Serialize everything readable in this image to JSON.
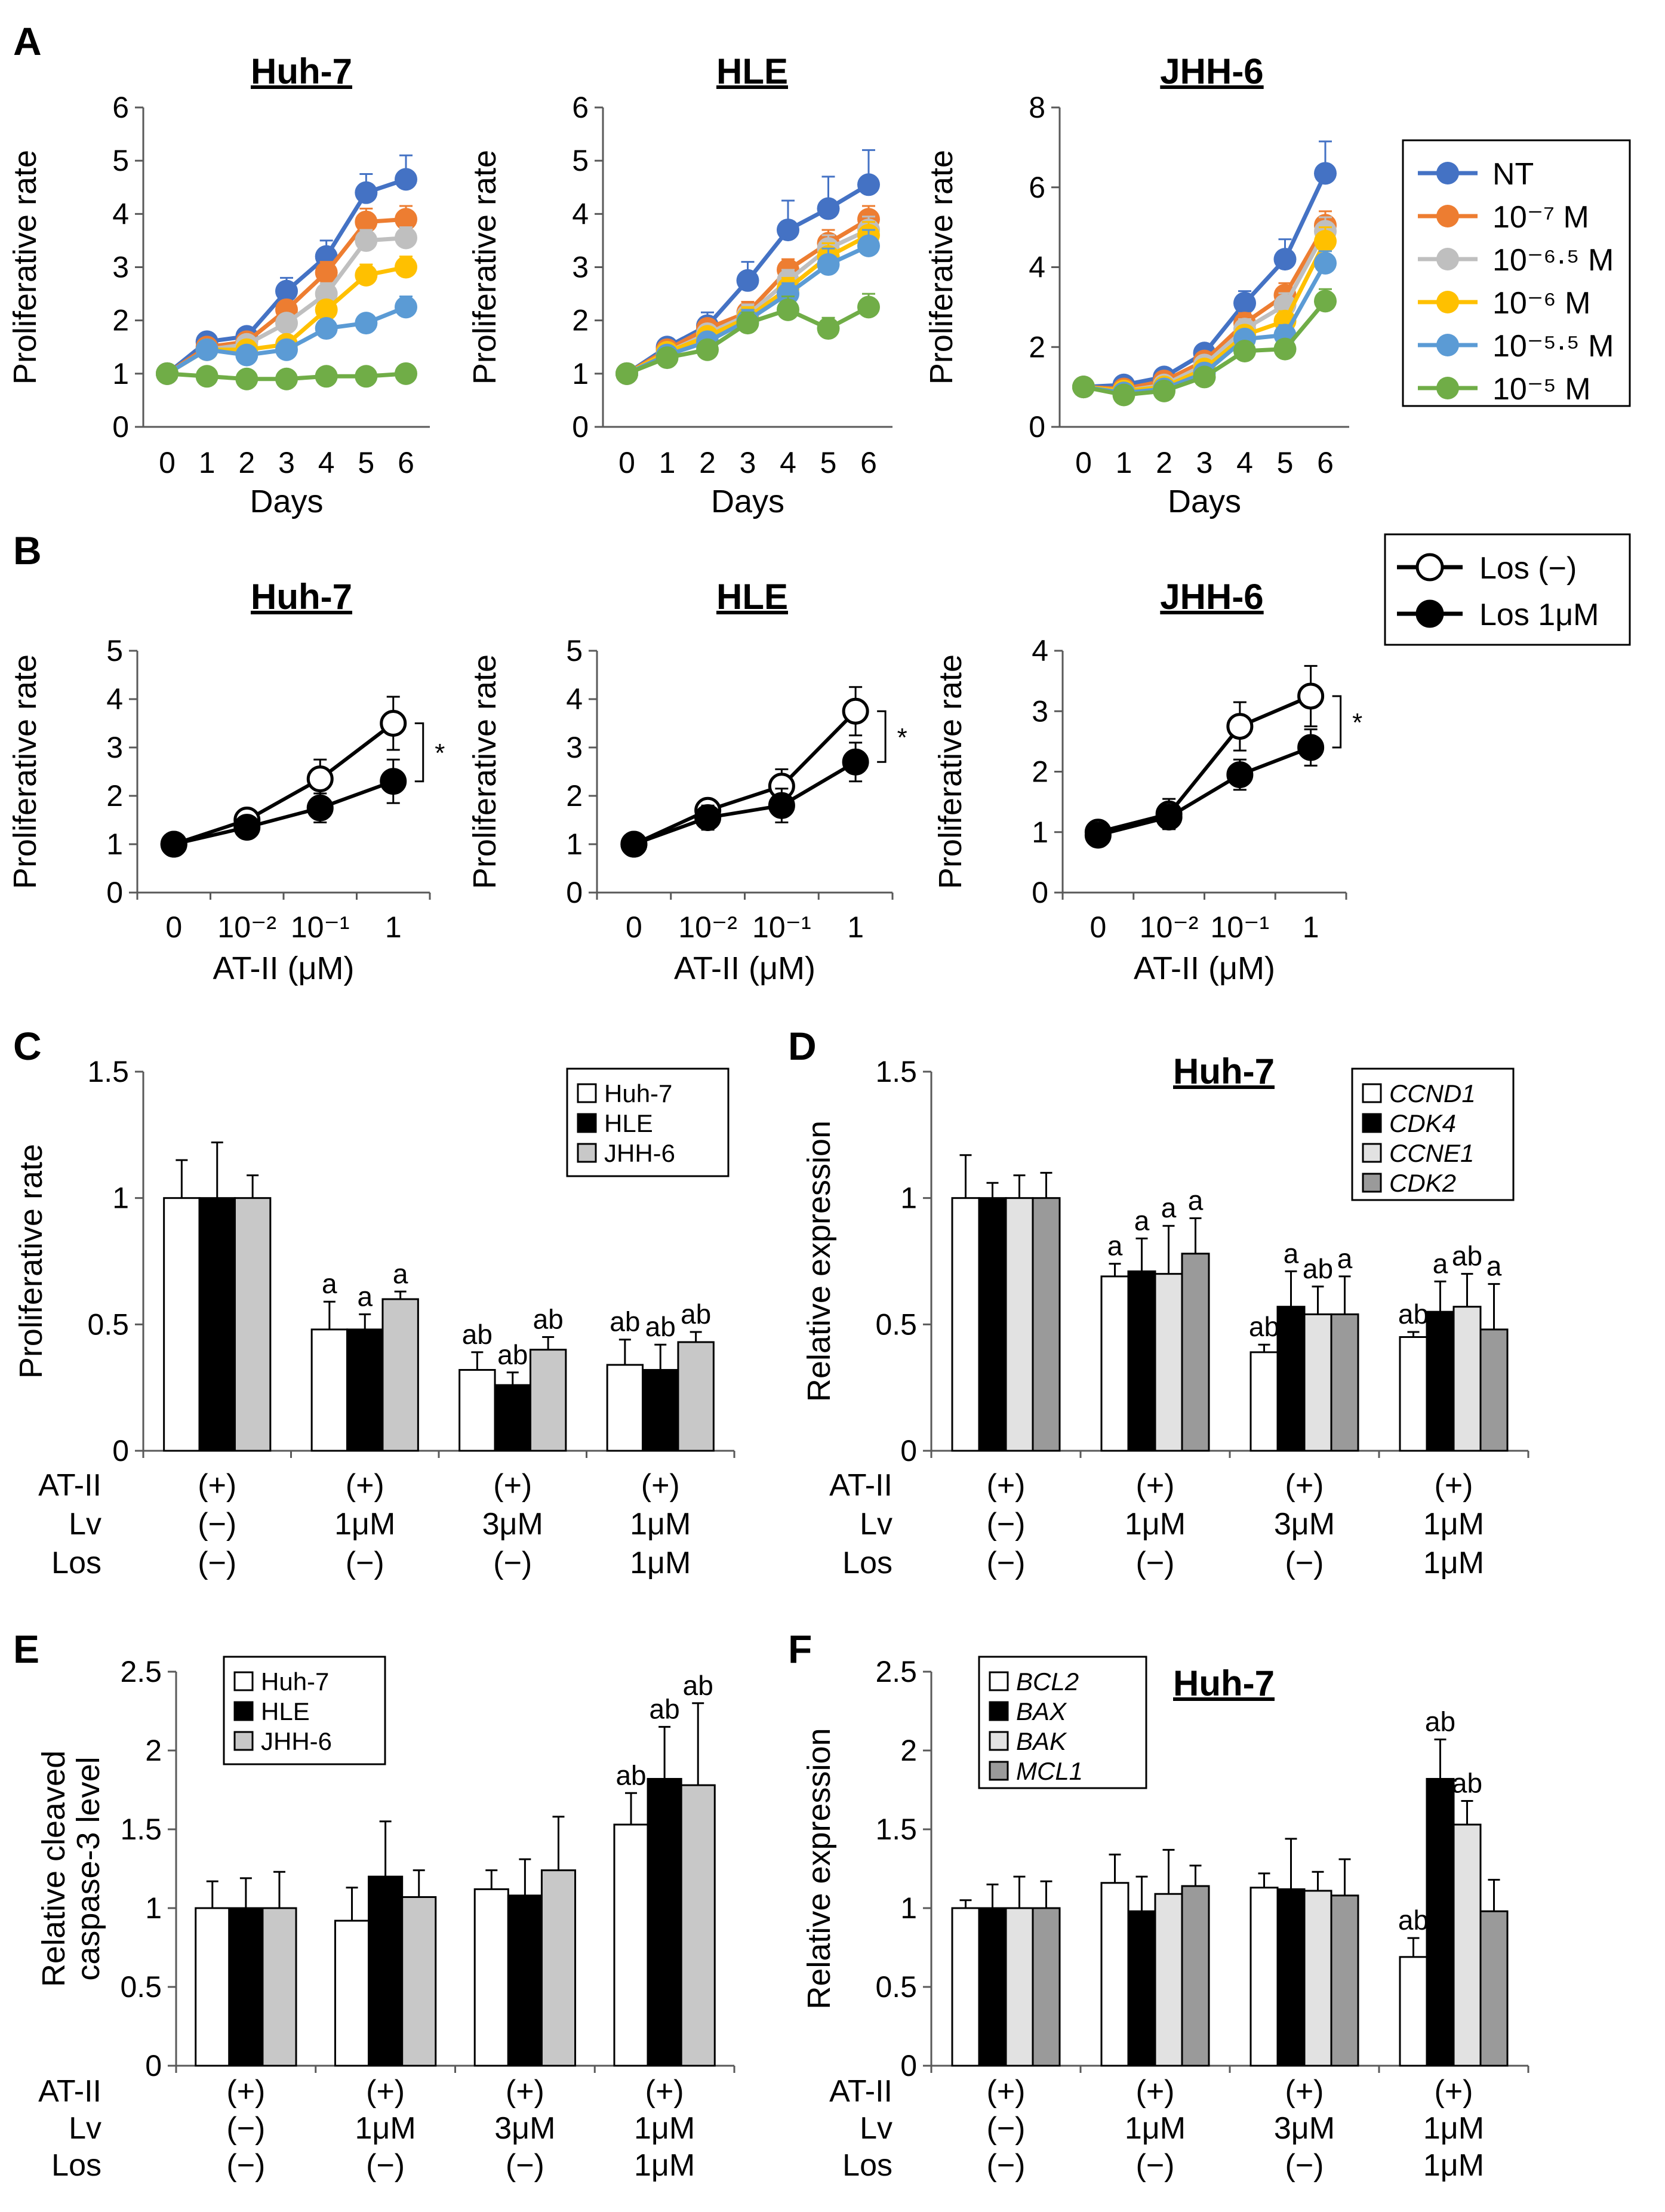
{
  "colors": {
    "NT": "#4472C4",
    "m7": "#ED7D31",
    "m65": "#BFBFBF",
    "m6": "#FFC000",
    "m55": "#5B9BD5",
    "m5": "#70AD47",
    "white": "#FFFFFF",
    "black": "#000000",
    "lightgray": "#C8C8C8",
    "darkgray": "#9A9A9A",
    "lightgray2": "#E2E2E2"
  },
  "panels": {
    "A": {
      "letter": "A"
    },
    "B": {
      "letter": "B"
    },
    "C": {
      "letter": "C"
    },
    "D": {
      "letter": "D"
    },
    "E": {
      "letter": "E"
    },
    "F": {
      "letter": "F"
    }
  },
  "chart_data": [
    {
      "id": "A1",
      "type": "line",
      "title": "Huh-7",
      "xlabel": "Days",
      "ylabel": "Proliferative rate",
      "ylim": [
        0,
        6
      ],
      "ystep": 1,
      "x": [
        0,
        1,
        2,
        3,
        4,
        5,
        6
      ],
      "grid": false,
      "series": [
        {
          "name": "NT",
          "color": "#4472C4",
          "values": [
            1.0,
            1.6,
            1.7,
            2.55,
            3.2,
            4.4,
            4.65
          ],
          "err": [
            0.05,
            0.1,
            0.1,
            0.25,
            0.3,
            0.35,
            0.45
          ]
        },
        {
          "name": "10⁻⁷ M",
          "color": "#ED7D31",
          "values": [
            1.0,
            1.5,
            1.6,
            2.2,
            2.9,
            3.85,
            3.9
          ],
          "err": [
            0.05,
            0.1,
            0.1,
            0.15,
            0.2,
            0.25,
            0.25
          ]
        },
        {
          "name": "10⁻⁶·⁵ M",
          "color": "#BFBFBF",
          "values": [
            1.0,
            1.45,
            1.55,
            1.95,
            2.5,
            3.5,
            3.55
          ],
          "err": [
            0.05,
            0.1,
            0.1,
            0.15,
            0.2,
            0.2,
            0.2
          ]
        },
        {
          "name": "10⁻⁶ M",
          "color": "#FFC000",
          "values": [
            1.0,
            1.45,
            1.45,
            1.55,
            2.2,
            2.85,
            3.0
          ],
          "err": [
            0.05,
            0.1,
            0.1,
            0.1,
            0.15,
            0.2,
            0.2
          ]
        },
        {
          "name": "10⁻⁵·⁵ M",
          "color": "#5B9BD5",
          "values": [
            1.0,
            1.45,
            1.35,
            1.45,
            1.85,
            1.95,
            2.25
          ],
          "err": [
            0.05,
            0.1,
            0.1,
            0.1,
            0.1,
            0.15,
            0.2
          ]
        },
        {
          "name": "10⁻⁵ M",
          "color": "#70AD47",
          "values": [
            1.0,
            0.95,
            0.9,
            0.9,
            0.95,
            0.95,
            1.0
          ],
          "err": [
            0.05,
            0.05,
            0.05,
            0.05,
            0.05,
            0.05,
            0.1
          ]
        }
      ]
    },
    {
      "id": "A2",
      "type": "line",
      "title": "HLE",
      "xlabel": "Days",
      "ylabel": "Proliferative rate",
      "ylim": [
        0,
        6
      ],
      "ystep": 1,
      "x": [
        0,
        1,
        2,
        3,
        4,
        5,
        6
      ],
      "grid": false,
      "series": [
        {
          "name": "NT",
          "color": "#4472C4",
          "values": [
            1.0,
            1.5,
            1.9,
            2.75,
            3.7,
            4.1,
            4.55
          ],
          "err": [
            0.05,
            0.15,
            0.25,
            0.35,
            0.55,
            0.6,
            0.65
          ]
        },
        {
          "name": "10⁻⁷ M",
          "color": "#ED7D31",
          "values": [
            1.0,
            1.45,
            1.85,
            2.15,
            2.95,
            3.45,
            3.9
          ],
          "err": [
            0.05,
            0.1,
            0.15,
            0.2,
            0.2,
            0.25,
            0.25
          ]
        },
        {
          "name": "10⁻⁶·⁵ M",
          "color": "#BFBFBF",
          "values": [
            1.0,
            1.4,
            1.75,
            2.1,
            2.75,
            3.35,
            3.7
          ],
          "err": [
            0.05,
            0.1,
            0.15,
            0.2,
            0.2,
            0.25,
            0.25
          ]
        },
        {
          "name": "10⁻⁶ M",
          "color": "#FFC000",
          "values": [
            1.0,
            1.4,
            1.7,
            2.05,
            2.6,
            3.2,
            3.6
          ],
          "err": [
            0.05,
            0.1,
            0.15,
            0.2,
            0.2,
            0.25,
            0.25
          ]
        },
        {
          "name": "10⁻⁵·⁵ M",
          "color": "#5B9BD5",
          "values": [
            1.0,
            1.35,
            1.6,
            2.0,
            2.5,
            3.05,
            3.4
          ],
          "err": [
            0.05,
            0.1,
            0.15,
            0.2,
            0.2,
            0.3,
            0.3
          ]
        },
        {
          "name": "10⁻⁵ M",
          "color": "#70AD47",
          "values": [
            1.0,
            1.3,
            1.45,
            1.95,
            2.2,
            1.85,
            2.25
          ],
          "err": [
            0.05,
            0.1,
            0.15,
            0.2,
            0.25,
            0.2,
            0.25
          ]
        }
      ]
    },
    {
      "id": "A3",
      "type": "line",
      "title": "JHH-6",
      "xlabel": "Days",
      "ylabel": "Proliferative rate",
      "ylim": [
        0,
        8
      ],
      "ystep": 2,
      "x": [
        0,
        1,
        2,
        3,
        4,
        5,
        6
      ],
      "grid": false,
      "series": [
        {
          "name": "NT",
          "color": "#4472C4",
          "values": [
            1.0,
            1.05,
            1.25,
            1.85,
            3.1,
            4.2,
            6.35
          ],
          "err": [
            0.05,
            0.1,
            0.15,
            0.2,
            0.3,
            0.5,
            0.8
          ]
        },
        {
          "name": "10⁻⁷ M",
          "color": "#ED7D31",
          "values": [
            1.0,
            0.95,
            1.15,
            1.65,
            2.6,
            3.3,
            5.05
          ],
          "err": [
            0.05,
            0.1,
            0.1,
            0.2,
            0.25,
            0.3,
            0.35
          ]
        },
        {
          "name": "10⁻⁶·⁵ M",
          "color": "#BFBFBF",
          "values": [
            1.0,
            0.9,
            1.05,
            1.55,
            2.45,
            3.05,
            4.9
          ],
          "err": [
            0.05,
            0.1,
            0.1,
            0.2,
            0.25,
            0.3,
            0.35
          ]
        },
        {
          "name": "10⁻⁶ M",
          "color": "#FFC000",
          "values": [
            1.0,
            0.9,
            1.0,
            1.45,
            2.3,
            2.65,
            4.65
          ],
          "err": [
            0.05,
            0.1,
            0.1,
            0.15,
            0.2,
            0.25,
            0.35
          ]
        },
        {
          "name": "10⁻⁵·⁵ M",
          "color": "#5B9BD5",
          "values": [
            1.0,
            0.85,
            0.95,
            1.35,
            2.2,
            2.3,
            4.1
          ],
          "err": [
            0.05,
            0.1,
            0.1,
            0.15,
            0.2,
            0.25,
            0.3
          ]
        },
        {
          "name": "10⁻⁵ M",
          "color": "#70AD47",
          "values": [
            1.0,
            0.8,
            0.9,
            1.25,
            1.9,
            1.95,
            3.15
          ],
          "err": [
            0.05,
            0.1,
            0.1,
            0.15,
            0.2,
            0.2,
            0.3
          ]
        }
      ]
    },
    {
      "id": "B1",
      "type": "line",
      "title": "Huh-7",
      "xlabel": "AT-II (μM)",
      "ylabel": "Proliferative rate",
      "ylim": [
        0,
        5
      ],
      "ystep": 1,
      "categories": [
        "0",
        "10⁻²",
        "10⁻¹",
        "1"
      ],
      "significance": "*",
      "series": [
        {
          "name": "Los (−)",
          "fill": "#FFFFFF",
          "values": [
            1.0,
            1.5,
            2.35,
            3.5
          ],
          "err": [
            0.05,
            0.15,
            0.4,
            0.55
          ]
        },
        {
          "name": "Los 1μM",
          "fill": "#000000",
          "values": [
            1.0,
            1.35,
            1.75,
            2.3
          ],
          "err": [
            0.05,
            0.15,
            0.3,
            0.45
          ]
        }
      ]
    },
    {
      "id": "B2",
      "type": "line",
      "title": "HLE",
      "xlabel": "AT-II (μM)",
      "ylabel": "Proliferative rate",
      "ylim": [
        0,
        5
      ],
      "ystep": 1,
      "categories": [
        "0",
        "10⁻²",
        "10⁻¹",
        "1"
      ],
      "significance": "*",
      "series": [
        {
          "name": "Los (−)",
          "fill": "#FFFFFF",
          "values": [
            1.0,
            1.7,
            2.2,
            3.75
          ],
          "err": [
            0.05,
            0.15,
            0.35,
            0.5
          ]
        },
        {
          "name": "Los 1μM",
          "fill": "#000000",
          "values": [
            1.0,
            1.55,
            1.8,
            2.7
          ],
          "err": [
            0.05,
            0.25,
            0.35,
            0.4
          ]
        }
      ]
    },
    {
      "id": "B3",
      "type": "line",
      "title": "JHH-6",
      "xlabel": "AT-II (μM)",
      "ylabel": "Proliferative rate",
      "ylim": [
        0,
        4
      ],
      "ystep": 1,
      "categories": [
        "0",
        "10⁻²",
        "10⁻¹",
        "1"
      ],
      "significance": "*",
      "series": [
        {
          "name": "Los (−)",
          "fill": "#FFFFFF",
          "values": [
            1.0,
            1.3,
            2.75,
            3.25
          ],
          "err": [
            0.15,
            0.25,
            0.4,
            0.5
          ]
        },
        {
          "name": "Los 1μM",
          "fill": "#000000",
          "values": [
            0.95,
            1.25,
            1.95,
            2.4
          ],
          "err": [
            0.1,
            0.2,
            0.25,
            0.3
          ]
        }
      ]
    },
    {
      "id": "C",
      "type": "bar",
      "title": "",
      "ylabel": "Proliferative rate",
      "ylim": [
        0,
        1.5
      ],
      "ystep": 0.5,
      "tickfmt": "trim",
      "legend": [
        "Huh-7",
        "HLE",
        "JHH-6"
      ],
      "series_colors": [
        "#FFFFFF",
        "#000000",
        "#C8C8C8"
      ],
      "values": [
        [
          1.0,
          1.0,
          1.0
        ],
        [
          0.48,
          0.48,
          0.6
        ],
        [
          0.32,
          0.26,
          0.4
        ],
        [
          0.34,
          0.32,
          0.43
        ]
      ],
      "err": [
        [
          0.15,
          0.22,
          0.09
        ],
        [
          0.11,
          0.06,
          0.03
        ],
        [
          0.07,
          0.05,
          0.05
        ],
        [
          0.1,
          0.1,
          0.04
        ]
      ],
      "labels": [
        [
          "",
          "",
          ""
        ],
        [
          "a",
          "a",
          "a"
        ],
        [
          "ab",
          "ab",
          "ab"
        ],
        [
          "ab",
          "ab",
          "ab"
        ]
      ],
      "conditions": {
        "rows": [
          "AT-II",
          "Lv",
          "Los"
        ],
        "groups": [
          [
            "(+)",
            "(−)",
            "(−)"
          ],
          [
            "(+)",
            "1μM",
            "(−)"
          ],
          [
            "(+)",
            "3μM",
            "(−)"
          ],
          [
            "(+)",
            "1μM",
            "1μM"
          ]
        ]
      }
    },
    {
      "id": "D",
      "type": "bar",
      "title": "Huh-7",
      "ylabel": "Relative expression",
      "ylim": [
        0,
        1.5
      ],
      "ystep": 0.5,
      "tickfmt": "trim",
      "legend": [
        "CCND1",
        "CDK4",
        "CCNE1",
        "CDK2"
      ],
      "legend_italic": true,
      "series_colors": [
        "#FFFFFF",
        "#000000",
        "#E2E2E2",
        "#9A9A9A"
      ],
      "values": [
        [
          1.0,
          1.0,
          1.0,
          1.0
        ],
        [
          0.69,
          0.71,
          0.7,
          0.78
        ],
        [
          0.39,
          0.57,
          0.54,
          0.54
        ],
        [
          0.45,
          0.55,
          0.57,
          0.48
        ]
      ],
      "err": [
        [
          0.17,
          0.06,
          0.09,
          0.1
        ],
        [
          0.05,
          0.13,
          0.19,
          0.14
        ],
        [
          0.03,
          0.14,
          0.11,
          0.15
        ],
        [
          0.02,
          0.12,
          0.13,
          0.18
        ]
      ],
      "labels": [
        [
          "",
          "",
          "",
          ""
        ],
        [
          "a",
          "a",
          "a",
          "a"
        ],
        [
          "ab",
          "a",
          "ab",
          "a"
        ],
        [
          "ab",
          "a",
          "ab",
          "a"
        ]
      ],
      "conditions": {
        "rows": [
          "AT-II",
          "Lv",
          "Los"
        ],
        "groups": [
          [
            "(+)",
            "(−)",
            "(−)"
          ],
          [
            "(+)",
            "1μM",
            "(−)"
          ],
          [
            "(+)",
            "3μM",
            "(−)"
          ],
          [
            "(+)",
            "1μM",
            "1μM"
          ]
        ]
      }
    },
    {
      "id": "E",
      "type": "bar",
      "title": "",
      "ylabel": "Relative cleaved caspase-3 level",
      "ylabel_lines": [
        "Relative cleaved",
        "caspase-3 level"
      ],
      "ylim": [
        0,
        2.5
      ],
      "ystep": 0.5,
      "tickfmt": "trim",
      "legend": [
        "Huh-7",
        "HLE",
        "JHH-6"
      ],
      "series_colors": [
        "#FFFFFF",
        "#000000",
        "#C8C8C8"
      ],
      "values": [
        [
          1.0,
          1.0,
          1.0
        ],
        [
          0.92,
          1.2,
          1.07
        ],
        [
          1.12,
          1.08,
          1.24
        ],
        [
          1.53,
          1.82,
          1.78
        ]
      ],
      "err": [
        [
          0.17,
          0.19,
          0.23
        ],
        [
          0.21,
          0.35,
          0.17
        ],
        [
          0.12,
          0.23,
          0.34
        ],
        [
          0.2,
          0.33,
          0.52
        ]
      ],
      "labels": [
        [
          "",
          "",
          ""
        ],
        [
          "",
          "",
          ""
        ],
        [
          "",
          "",
          ""
        ],
        [
          "ab",
          "ab",
          "ab"
        ]
      ],
      "conditions": {
        "rows": [
          "AT-II",
          "Lv",
          "Los"
        ],
        "groups": [
          [
            "(+)",
            "(−)",
            "(−)"
          ],
          [
            "(+)",
            "1μM",
            "(−)"
          ],
          [
            "(+)",
            "3μM",
            "(−)"
          ],
          [
            "(+)",
            "1μM",
            "1μM"
          ]
        ]
      }
    },
    {
      "id": "F",
      "type": "bar",
      "title": "Huh-7",
      "ylabel": "Relative expression",
      "ylim": [
        0,
        2.5
      ],
      "ystep": 0.5,
      "tickfmt": "trim",
      "legend": [
        "BCL2",
        "BAX",
        "BAK",
        "MCL1"
      ],
      "legend_italic": true,
      "series_colors": [
        "#FFFFFF",
        "#000000",
        "#E2E2E2",
        "#9A9A9A"
      ],
      "values": [
        [
          1.0,
          1.0,
          1.0,
          1.0
        ],
        [
          1.16,
          0.98,
          1.09,
          1.14
        ],
        [
          1.13,
          1.12,
          1.11,
          1.08
        ],
        [
          0.69,
          1.82,
          1.53,
          0.98
        ]
      ],
      "err": [
        [
          0.05,
          0.15,
          0.2,
          0.17
        ],
        [
          0.18,
          0.22,
          0.28,
          0.13
        ],
        [
          0.09,
          0.32,
          0.12,
          0.23
        ],
        [
          0.12,
          0.25,
          0.15,
          0.2
        ]
      ],
      "labels": [
        [
          "",
          "",
          "",
          ""
        ],
        [
          "",
          "",
          "",
          ""
        ],
        [
          "",
          "",
          "",
          ""
        ],
        [
          "ab",
          "ab",
          "ab",
          ""
        ]
      ],
      "conditions": {
        "rows": [
          "AT-II",
          "Lv",
          "Los"
        ],
        "groups": [
          [
            "(+)",
            "(−)",
            "(−)"
          ],
          [
            "(+)",
            "1μM",
            "(−)"
          ],
          [
            "(+)",
            "3μM",
            "(−)"
          ],
          [
            "(+)",
            "1μM",
            "1μM"
          ]
        ]
      }
    }
  ]
}
